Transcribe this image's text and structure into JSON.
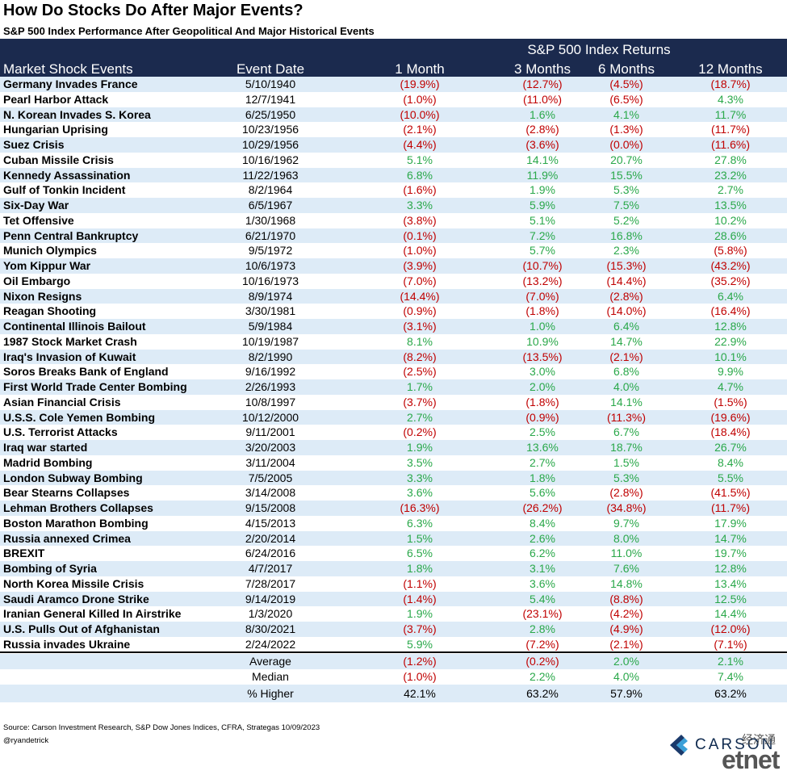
{
  "header": {
    "title": "How Do Stocks Do After Major Events?",
    "subtitle": "S&P 500 Index Performance After Geopolitical And Major Historical Events"
  },
  "table": {
    "group_label": "S&P 500 Index Returns",
    "columns": [
      "Market Shock Events",
      "Event Date",
      "1 Month",
      "3 Months",
      "6 Months",
      "12 Months"
    ],
    "rows": [
      [
        "Germany Invades France",
        "5/10/1940",
        "(19.9%)",
        "(12.7%)",
        "(4.5%)",
        "(18.7%)"
      ],
      [
        "Pearl Harbor Attack",
        "12/7/1941",
        "(1.0%)",
        "(11.0%)",
        "(6.5%)",
        "4.3%"
      ],
      [
        "N. Korean Invades S. Korea",
        "6/25/1950",
        "(10.0%)",
        "1.6%",
        "4.1%",
        "11.7%"
      ],
      [
        "Hungarian Uprising",
        "10/23/1956",
        "(2.1%)",
        "(2.8%)",
        "(1.3%)",
        "(11.7%)"
      ],
      [
        "Suez Crisis",
        "10/29/1956",
        "(4.4%)",
        "(3.6%)",
        "(0.0%)",
        "(11.6%)"
      ],
      [
        "Cuban Missile Crisis",
        "10/16/1962",
        "5.1%",
        "14.1%",
        "20.7%",
        "27.8%"
      ],
      [
        "Kennedy Assassination",
        "11/22/1963",
        "6.8%",
        "11.9%",
        "15.5%",
        "23.2%"
      ],
      [
        "Gulf of Tonkin Incident",
        "8/2/1964",
        "(1.6%)",
        "1.9%",
        "5.3%",
        "2.7%"
      ],
      [
        "Six-Day War",
        "6/5/1967",
        "3.3%",
        "5.9%",
        "7.5%",
        "13.5%"
      ],
      [
        "Tet Offensive",
        "1/30/1968",
        "(3.8%)",
        "5.1%",
        "5.2%",
        "10.2%"
      ],
      [
        "Penn Central Bankruptcy",
        "6/21/1970",
        "(0.1%)",
        "7.2%",
        "16.8%",
        "28.6%"
      ],
      [
        "Munich Olympics",
        "9/5/1972",
        "(1.0%)",
        "5.7%",
        "2.3%",
        "(5.8%)"
      ],
      [
        "Yom Kippur War",
        "10/6/1973",
        "(3.9%)",
        "(10.7%)",
        "(15.3%)",
        "(43.2%)"
      ],
      [
        "Oil Embargo",
        "10/16/1973",
        "(7.0%)",
        "(13.2%)",
        "(14.4%)",
        "(35.2%)"
      ],
      [
        "Nixon Resigns",
        "8/9/1974",
        "(14.4%)",
        "(7.0%)",
        "(2.8%)",
        "6.4%"
      ],
      [
        "Reagan Shooting",
        "3/30/1981",
        "(0.9%)",
        "(1.8%)",
        "(14.0%)",
        "(16.4%)"
      ],
      [
        "Continental Illinois Bailout",
        "5/9/1984",
        "(3.1%)",
        "1.0%",
        "6.4%",
        "12.8%"
      ],
      [
        "1987 Stock Market Crash",
        "10/19/1987",
        "8.1%",
        "10.9%",
        "14.7%",
        "22.9%"
      ],
      [
        "Iraq's Invasion of Kuwait",
        "8/2/1990",
        "(8.2%)",
        "(13.5%)",
        "(2.1%)",
        "10.1%"
      ],
      [
        "Soros Breaks Bank of England",
        "9/16/1992",
        "(2.5%)",
        "3.0%",
        "6.8%",
        "9.9%"
      ],
      [
        "First World Trade Center Bombing",
        "2/26/1993",
        "1.7%",
        "2.0%",
        "4.0%",
        "4.7%"
      ],
      [
        "Asian Financial Crisis",
        "10/8/1997",
        "(3.7%)",
        "(1.8%)",
        "14.1%",
        "(1.5%)"
      ],
      [
        "U.S.S. Cole Yemen Bombing",
        "10/12/2000",
        "2.7%",
        "(0.9%)",
        "(11.3%)",
        "(19.6%)"
      ],
      [
        "U.S. Terrorist Attacks",
        "9/11/2001",
        "(0.2%)",
        "2.5%",
        "6.7%",
        "(18.4%)"
      ],
      [
        "Iraq war started",
        "3/20/2003",
        "1.9%",
        "13.6%",
        "18.7%",
        "26.7%"
      ],
      [
        "Madrid Bombing",
        "3/11/2004",
        "3.5%",
        "2.7%",
        "1.5%",
        "8.4%"
      ],
      [
        "London Subway Bombing",
        "7/5/2005",
        "3.3%",
        "1.8%",
        "5.3%",
        "5.5%"
      ],
      [
        "Bear Stearns Collapses",
        "3/14/2008",
        "3.6%",
        "5.6%",
        "(2.8%)",
        "(41.5%)"
      ],
      [
        "Lehman Brothers Collapses",
        "9/15/2008",
        "(16.3%)",
        "(26.2%)",
        "(34.8%)",
        "(11.7%)"
      ],
      [
        "Boston Marathon Bombing",
        "4/15/2013",
        "6.3%",
        "8.4%",
        "9.7%",
        "17.9%"
      ],
      [
        "Russia annexed Crimea",
        "2/20/2014",
        "1.5%",
        "2.6%",
        "8.0%",
        "14.7%"
      ],
      [
        "BREXIT",
        "6/24/2016",
        "6.5%",
        "6.2%",
        "11.0%",
        "19.7%"
      ],
      [
        "Bombing of Syria",
        "4/7/2017",
        "1.8%",
        "3.1%",
        "7.6%",
        "12.8%"
      ],
      [
        "North Korea Missile Crisis",
        "7/28/2017",
        "(1.1%)",
        "3.6%",
        "14.8%",
        "13.4%"
      ],
      [
        "Saudi Aramco Drone Strike",
        "9/14/2019",
        "(1.4%)",
        "5.4%",
        "(8.8%)",
        "12.5%"
      ],
      [
        "Iranian General Killed In Airstrike",
        "1/3/2020",
        "1.9%",
        "(23.1%)",
        "(4.2%)",
        "14.4%"
      ],
      [
        "U.S. Pulls Out of Afghanistan",
        "8/30/2021",
        "(3.7%)",
        "2.8%",
        "(4.9%)",
        "(12.0%)"
      ],
      [
        "Russia invades Ukraine",
        "2/24/2022",
        "5.9%",
        "(7.2%)",
        "(2.1%)",
        "(7.1%)"
      ]
    ],
    "summary": [
      [
        "Average",
        "(1.2%)",
        "(0.2%)",
        "2.0%",
        "2.1%"
      ],
      [
        "Median",
        "(1.0%)",
        "2.2%",
        "4.0%",
        "7.4%"
      ],
      [
        "% Higher",
        "42.1%",
        "63.2%",
        "57.9%",
        "63.2%"
      ]
    ]
  },
  "colors": {
    "header_bg": "#1b2a4e",
    "stripe": "#ddebf7",
    "negative": "#c00000",
    "positive": "#2aa84a"
  },
  "footer": {
    "source": "Source: Carson Investment Research, S&P Dow Jones Indices, CFRA, Strategas 10/09/2023",
    "handle": "@ryandetrick",
    "brand": "CARSON",
    "watermark_cn": "经济通",
    "watermark_en": "etnet"
  }
}
